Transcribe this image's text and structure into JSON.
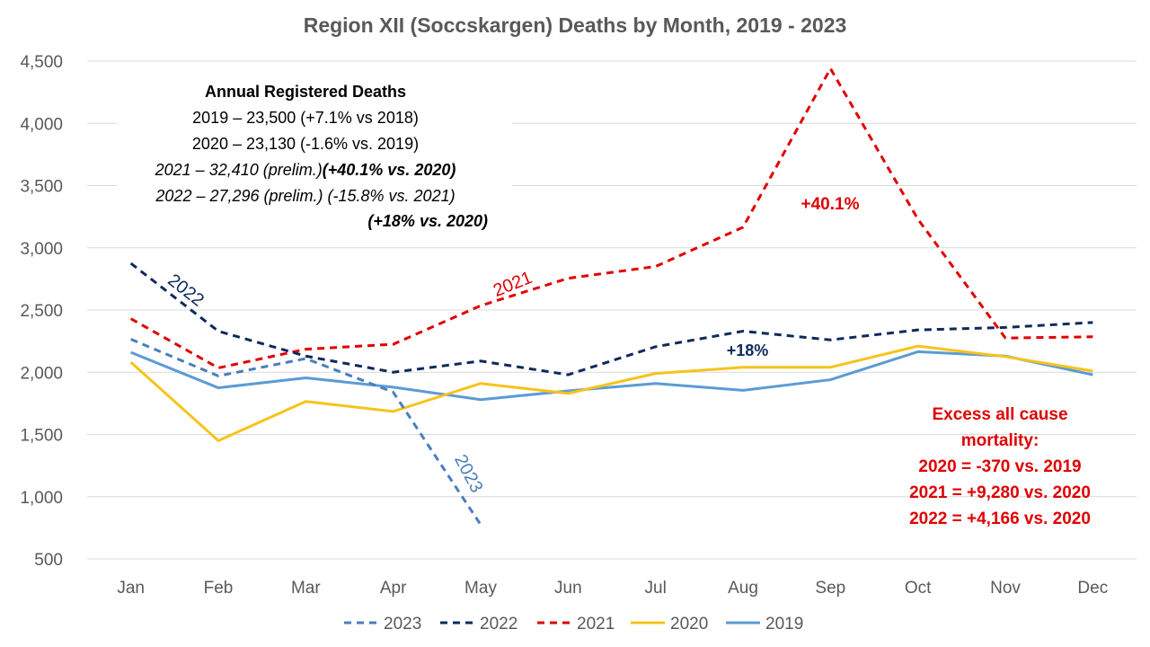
{
  "chart_data": {
    "type": "line",
    "title": "Region XII (Soccskargen) Deaths by Month, 2019 - 2023",
    "categories": [
      "Jan",
      "Feb",
      "Mar",
      "Apr",
      "May",
      "Jun",
      "Jul",
      "Aug",
      "Sep",
      "Oct",
      "Nov",
      "Dec"
    ],
    "ylim": [
      500,
      4500
    ],
    "yticks": [
      "500",
      "1,000",
      "1,500",
      "2,000",
      "2,500",
      "3,000",
      "3,500",
      "4,000",
      "4,500"
    ],
    "grid": true,
    "legend_position": "bottom",
    "series": [
      {
        "name": "2023",
        "color": "#4a7ebb",
        "dash": true,
        "values": [
          2265,
          1970,
          2110,
          1840,
          775,
          null,
          null,
          null,
          null,
          null,
          null,
          null
        ]
      },
      {
        "name": "2022",
        "color": "#0d2a5c",
        "dash": true,
        "values": [
          2875,
          2330,
          2130,
          2000,
          2090,
          1980,
          2205,
          2330,
          2260,
          2340,
          2360,
          2400
        ]
      },
      {
        "name": "2021",
        "color": "#e00000",
        "dash": true,
        "values": [
          2430,
          2035,
          2185,
          2225,
          2535,
          2755,
          2850,
          3165,
          4440,
          3230,
          2275,
          2285
        ]
      },
      {
        "name": "2020",
        "color": "#f7c31b",
        "dash": false,
        "values": [
          2080,
          1450,
          1765,
          1685,
          1910,
          1830,
          1990,
          2040,
          2040,
          2210,
          2125,
          2010
        ]
      },
      {
        "name": "2019",
        "color": "#5b9bd5",
        "dash": false,
        "values": [
          2160,
          1875,
          1955,
          1880,
          1780,
          1850,
          1910,
          1855,
          1940,
          2165,
          2130,
          1980
        ]
      }
    ],
    "annotations": {
      "annual_title": "Annual Registered Deaths",
      "line_2019": "2019 – 23,500 (+7.1% vs 2018)",
      "line_2020": "2020 – 23,130 (-1.6% vs. 2019)",
      "line_2021_a": "2021 – 32,410 (prelim.)",
      "line_2021_b": "(+40.1% vs. 2020)",
      "line_2022": "2022 – 27,296 (prelim.) (-15.8% vs. 2021)",
      "line_2022_b": "(+18% vs. 2020)",
      "pct_2021": "+40.1%",
      "pct_2022": "+18%",
      "label_2021": "2021",
      "label_2022": "2022",
      "label_2023": "2023",
      "excess_1": "Excess all cause",
      "excess_2": "mortality:",
      "excess_3": "2020 = -370 vs. 2019",
      "excess_4": "2021 = +9,280 vs. 2020",
      "excess_5": "2022 = +4,166 vs. 2020"
    }
  }
}
